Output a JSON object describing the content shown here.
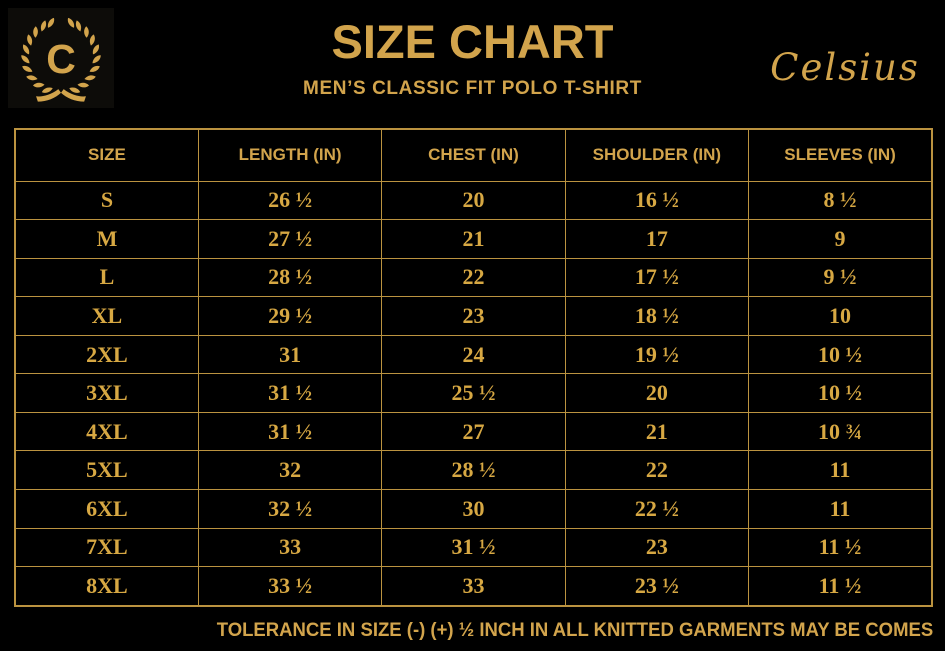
{
  "colors": {
    "background": "#000000",
    "gold": "#D2A44C",
    "gold_bright": "#D7A843",
    "grid": "#BB9340"
  },
  "header": {
    "logo_letter": "C",
    "title": "SIZE CHART",
    "subtitle": "MEN’S CLASSIC FIT POLO T-SHIRT",
    "brand": "Celsius"
  },
  "chart_data": {
    "type": "table",
    "title": "SIZE CHART",
    "subtitle": "MEN’S CLASSIC FIT POLO T-SHIRT",
    "columns": [
      "SIZE",
      "LENGTH (IN)",
      "CHEST (IN)",
      "SHOULDER (IN)",
      "SLEEVES (IN)"
    ],
    "rows": [
      [
        "S",
        "26 ½",
        "20",
        "16 ½",
        "8 ½"
      ],
      [
        "M",
        "27 ½",
        "21",
        "17",
        "9"
      ],
      [
        "L",
        "28 ½",
        "22",
        "17 ½",
        "9 ½"
      ],
      [
        "XL",
        "29 ½",
        "23",
        "18 ½",
        "10"
      ],
      [
        "2XL",
        "31",
        "24",
        "19 ½",
        "10 ½"
      ],
      [
        "3XL",
        "31 ½",
        "25 ½",
        "20",
        "10 ½"
      ],
      [
        "4XL",
        "31 ½",
        "27",
        "21",
        "10 ¾"
      ],
      [
        "5XL",
        "32",
        "28 ½",
        "22",
        "11"
      ],
      [
        "6XL",
        "32 ½",
        "30",
        "22 ½",
        "11"
      ],
      [
        "7XL",
        "33",
        "31 ½",
        "23",
        "11 ½"
      ],
      [
        "8XL",
        "33 ½",
        "33",
        "23 ½",
        "11 ½"
      ]
    ],
    "footnote": "TOLERANCE IN SIZE (-) (+) ½ INCH IN ALL KNITTED GARMENTS MAY BE COMES"
  },
  "footer": {
    "note": "TOLERANCE IN SIZE (-) (+) ½ INCH IN ALL KNITTED GARMENTS MAY BE COMES"
  }
}
